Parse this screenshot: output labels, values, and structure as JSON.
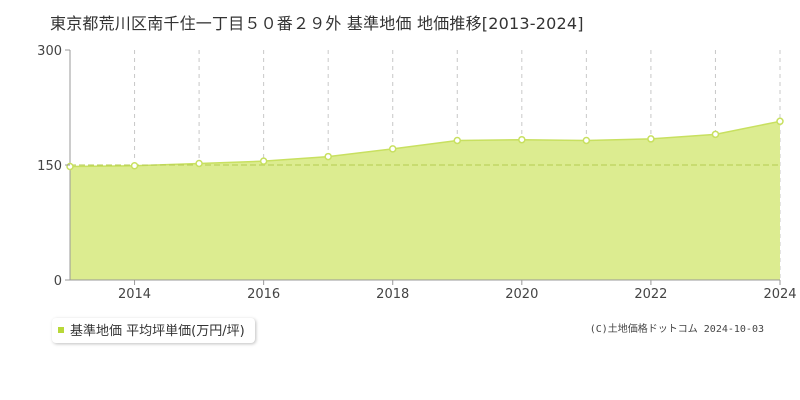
{
  "title": "東京都荒川区南千住一丁目５０番２９外 基準地価 地価推移[2013-2024]",
  "copyright": "(C)土地価格ドットコム 2024-10-03",
  "colors": {
    "fill": "#dcec90",
    "line": "#c8e060",
    "marker_fill": "#ffffff",
    "marker_stroke": "#c8e060",
    "grid": "#c8c8c8",
    "ref_line": "#b4cc50",
    "axis_text": "#444444",
    "legend_swatch": "#b8d838"
  },
  "legend": {
    "label": "基準地価 平均坪単価(万円/坪)"
  },
  "chart_data": {
    "type": "area",
    "x": [
      2013,
      2014,
      2015,
      2016,
      2017,
      2018,
      2019,
      2020,
      2021,
      2022,
      2023,
      2024
    ],
    "series": [
      {
        "name": "基準地価 平均坪単価(万円/坪)",
        "values": [
          148,
          149,
          152,
          155,
          161,
          171,
          182,
          183,
          182,
          184,
          190,
          207
        ]
      }
    ],
    "xlim": [
      2013,
      2024
    ],
    "ylim": [
      0,
      300
    ],
    "y_ticks": [
      0,
      150,
      300
    ],
    "x_ticks": [
      2014,
      2016,
      2018,
      2020,
      2022,
      2024
    ],
    "x_minor_grid": [
      2015,
      2017,
      2019,
      2021,
      2023
    ],
    "reference_line": 150,
    "grid": true,
    "legend_position": "bottom-left"
  }
}
